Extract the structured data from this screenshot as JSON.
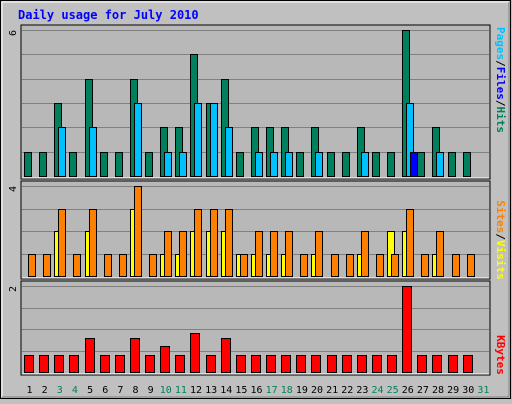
{
  "title": "Daily usage for July 2010",
  "colors": {
    "background": "#c0c0c0",
    "plot_bg": "#b8b8b8",
    "grid": "#808080",
    "title": "#0000ff",
    "hits": "#00805c",
    "files": "#00c0ff",
    "pages": "#0000ff",
    "visits": "#ffff00",
    "sites": "#ff8000",
    "kbytes": "#ff0000",
    "day_normal": "#000000",
    "day_weekend": "#00805c"
  },
  "right_labels": {
    "hits": "Hits",
    "files": "Files",
    "pages": "Pages",
    "sep": "/",
    "visits": "Visits",
    "sites": "Sites",
    "kbytes": "KBytes"
  },
  "chart_data": {
    "type": "bar",
    "title": "Daily usage for July 2010",
    "x": [
      1,
      2,
      3,
      4,
      5,
      6,
      7,
      8,
      9,
      10,
      11,
      12,
      13,
      14,
      15,
      16,
      17,
      18,
      19,
      20,
      21,
      22,
      23,
      24,
      25,
      26,
      27,
      28,
      29,
      30,
      31
    ],
    "weekend_days": [
      3,
      4,
      10,
      11,
      17,
      18,
      24,
      25,
      31
    ],
    "panels": [
      {
        "name": "hits-files-pages",
        "ymax_label": "6",
        "ylim": [
          0,
          6
        ],
        "series": [
          {
            "name": "Hits",
            "values": [
              1,
              1,
              3,
              1,
              4,
              1,
              1,
              4,
              1,
              2,
              2,
              5,
              3,
              4,
              1,
              2,
              2,
              2,
              1,
              2,
              1,
              1,
              2,
              1,
              1,
              6,
              1,
              2,
              1,
              1,
              0
            ]
          },
          {
            "name": "Files",
            "values": [
              0,
              0,
              2,
              0,
              2,
              0,
              0,
              3,
              0,
              1,
              1,
              3,
              3,
              2,
              0,
              1,
              1,
              1,
              0,
              1,
              0,
              0,
              1,
              0,
              0,
              3,
              0,
              1,
              0,
              0,
              0
            ]
          },
          {
            "name": "Pages",
            "values": [
              0,
              0,
              0,
              0,
              0,
              0,
              0,
              0,
              0,
              0,
              0,
              0,
              0,
              0,
              0,
              0,
              0,
              0,
              0,
              0,
              0,
              0,
              0,
              0,
              0,
              1,
              0,
              0,
              0,
              0,
              0
            ]
          }
        ]
      },
      {
        "name": "visits-sites",
        "ymax_label": "4",
        "ylim": [
          0,
          4
        ],
        "series": [
          {
            "name": "Visits",
            "values": [
              0,
              0,
              2,
              0,
              2,
              0,
              0,
              3,
              0,
              1,
              1,
              2,
              2,
              2,
              1,
              1,
              1,
              1,
              0,
              1,
              0,
              0,
              1,
              0,
              2,
              2,
              0,
              1,
              0,
              0,
              0
            ]
          },
          {
            "name": "Sites",
            "values": [
              1,
              1,
              3,
              1,
              3,
              1,
              1,
              4,
              1,
              2,
              2,
              3,
              3,
              3,
              1,
              2,
              2,
              2,
              1,
              2,
              1,
              1,
              2,
              1,
              1,
              3,
              1,
              2,
              1,
              1,
              0
            ]
          }
        ]
      },
      {
        "name": "kbytes",
        "ymax_label": "2",
        "ylim": [
          0,
          2
        ],
        "series": [
          {
            "name": "KBytes",
            "values": [
              0.4,
              0.4,
              0.4,
              0.4,
              0.8,
              0.4,
              0.4,
              0.8,
              0.4,
              0.6,
              0.4,
              0.9,
              0.4,
              0.8,
              0.4,
              0.4,
              0.4,
              0.4,
              0.4,
              0.4,
              0.4,
              0.4,
              0.4,
              0.4,
              0.4,
              2.0,
              0.4,
              0.4,
              0.4,
              0.4,
              0
            ]
          }
        ]
      }
    ]
  }
}
